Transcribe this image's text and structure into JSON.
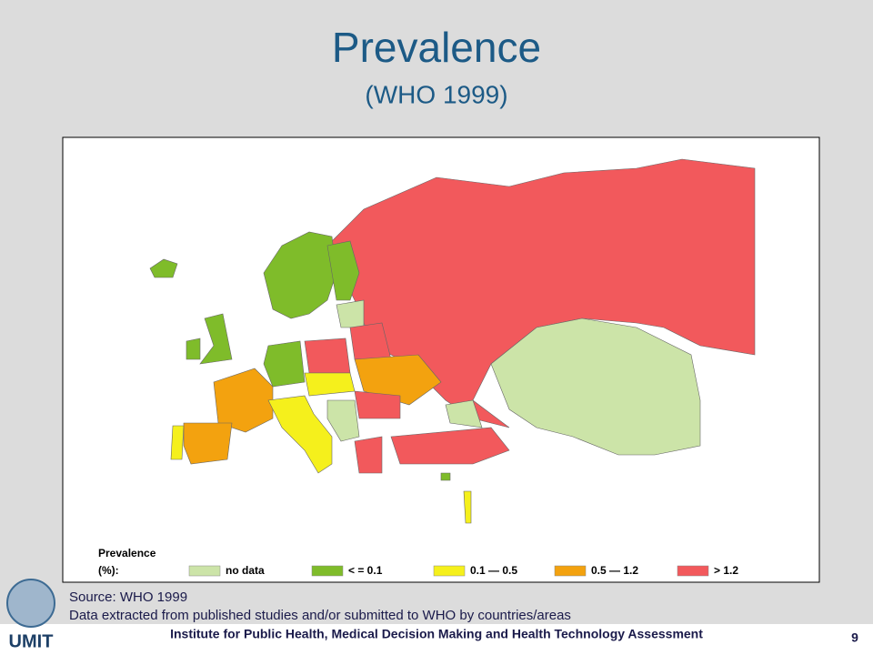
{
  "header": {
    "title": "Prevalence",
    "subtitle": "(WHO 1999)"
  },
  "legend": {
    "title_lines": [
      "Prevalence",
      "(%):"
    ],
    "items": [
      {
        "label": "no data",
        "color": "#cce4a8"
      },
      {
        "label": "< = 0.1",
        "color": "#7fbc2a"
      },
      {
        "label": "0.1 — 0.5",
        "color": "#f5f01c"
      },
      {
        "label": "0.5 — 1.2",
        "color": "#f3a20f"
      },
      {
        "label": "> 1.2",
        "color": "#f2595c"
      }
    ]
  },
  "source": [
    "Source: WHO 1999",
    "Data extracted from published studies and/or submitted to WHO by countries/areas"
  ],
  "footer": {
    "institute": "Institute for Public Health, Medical Decision Making and Health Technology Assessment",
    "page": "9",
    "logo": "UMIT"
  }
}
